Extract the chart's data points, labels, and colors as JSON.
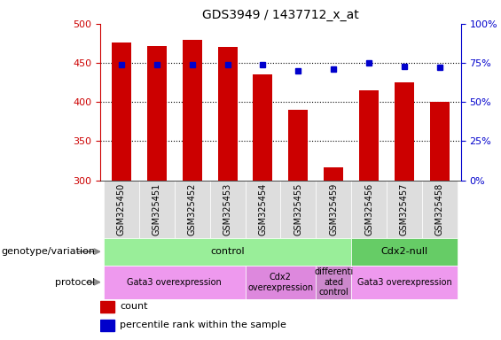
{
  "title": "GDS3949 / 1437712_x_at",
  "samples": [
    "GSM325450",
    "GSM325451",
    "GSM325452",
    "GSM325453",
    "GSM325454",
    "GSM325455",
    "GSM325459",
    "GSM325456",
    "GSM325457",
    "GSM325458"
  ],
  "counts": [
    476,
    472,
    479,
    470,
    435,
    390,
    317,
    415,
    425,
    400
  ],
  "percentile_ranks": [
    74,
    74,
    74,
    74,
    74,
    70,
    71,
    75,
    73,
    72
  ],
  "y_min": 300,
  "y_max": 500,
  "y_ticks": [
    300,
    350,
    400,
    450,
    500
  ],
  "y2_ticks": [
    0,
    25,
    50,
    75,
    100
  ],
  "y2_tick_labels": [
    "0%",
    "25%",
    "50%",
    "75%",
    "100%"
  ],
  "bar_color": "#cc0000",
  "dot_color": "#0000cc",
  "bar_width": 0.55,
  "genotype_groups": [
    {
      "label": "control",
      "start": 0,
      "end": 7,
      "color": "#99ee99"
    },
    {
      "label": "Cdx2-null",
      "start": 7,
      "end": 10,
      "color": "#66cc66"
    }
  ],
  "protocol_groups": [
    {
      "label": "Gata3 overexpression",
      "start": 0,
      "end": 4,
      "color": "#ee99ee"
    },
    {
      "label": "Cdx2\noverexpression",
      "start": 4,
      "end": 6,
      "color": "#dd88dd"
    },
    {
      "label": "differenti\nated\ncontrol",
      "start": 6,
      "end": 7,
      "color": "#cc88cc"
    },
    {
      "label": "Gata3 overexpression",
      "start": 7,
      "end": 10,
      "color": "#ee99ee"
    }
  ],
  "left_axis_color": "#cc0000",
  "right_axis_color": "#0000cc",
  "tick_label_color": "#555555",
  "legend_items": [
    {
      "color": "#cc0000",
      "label": "count"
    },
    {
      "color": "#0000cc",
      "label": "percentile rank within the sample"
    }
  ],
  "label_genotype": "genotype/variation",
  "label_protocol": "protocol",
  "row_label_fontsize": 8,
  "arrow_color": "#888888"
}
